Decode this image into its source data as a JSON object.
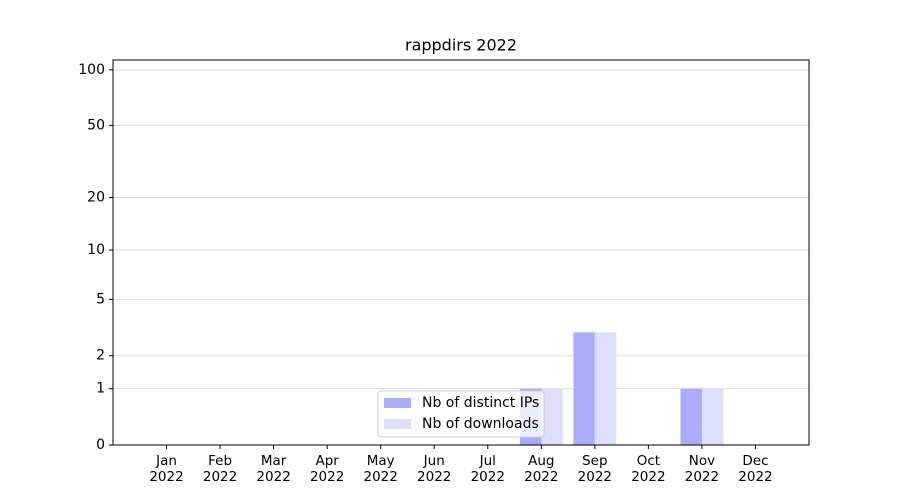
{
  "chart_data": {
    "type": "bar",
    "title": "rappdirs 2022",
    "categories": [
      "Jan 2022",
      "Feb 2022",
      "Mar 2022",
      "Apr 2022",
      "May 2022",
      "Jun 2022",
      "Jul 2022",
      "Aug 2022",
      "Sep 2022",
      "Oct 2022",
      "Nov 2022",
      "Dec 2022"
    ],
    "series": [
      {
        "name": "Nb of distinct IPs",
        "color": "#aaaaff",
        "values": [
          0,
          0,
          0,
          0,
          0,
          0,
          0,
          1,
          3,
          0,
          1,
          0
        ]
      },
      {
        "name": "Nb of downloads",
        "color": "#ddddfc",
        "values": [
          0,
          0,
          0,
          0,
          0,
          0,
          0,
          1,
          3,
          0,
          1,
          0
        ]
      }
    ],
    "yscale": "symlog",
    "ylim": [
      0,
      113
    ],
    "yticks": [
      0,
      1,
      2,
      5,
      10,
      20,
      50,
      100
    ],
    "grid": true,
    "legend": "lower center"
  }
}
